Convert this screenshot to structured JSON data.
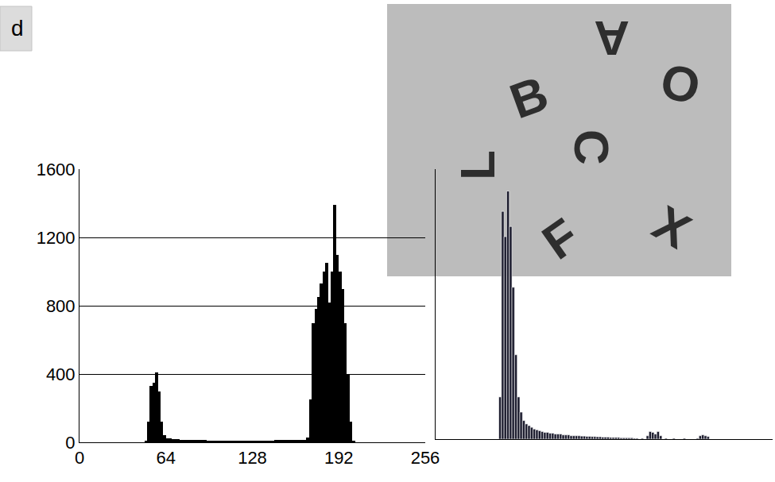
{
  "caption": "d",
  "image": {
    "letters": [
      "B",
      "A",
      "O",
      "C",
      "L",
      "F",
      "X"
    ]
  },
  "chart_data": [
    {
      "type": "histogram",
      "bins": [
        0,
        2,
        4,
        6,
        8,
        10,
        12,
        14,
        16,
        18,
        20,
        22,
        24,
        26,
        28,
        30,
        32,
        34,
        36,
        38,
        40,
        42,
        44,
        46,
        48,
        50,
        52,
        54,
        56,
        58,
        60,
        62,
        64,
        66,
        68,
        70,
        72,
        74,
        76,
        78,
        80,
        82,
        84,
        86,
        88,
        90,
        92,
        94,
        96,
        98,
        100,
        102,
        104,
        106,
        108,
        110,
        112,
        114,
        116,
        118,
        120,
        122,
        124,
        126,
        128,
        130,
        132,
        134,
        136,
        138,
        140,
        142,
        144,
        146,
        148,
        150,
        152,
        154,
        156,
        158,
        160,
        162,
        164,
        166,
        168,
        170,
        172,
        174,
        176,
        178,
        180,
        182,
        184,
        186,
        188,
        190,
        192,
        194,
        196,
        198,
        200,
        202,
        204,
        206,
        208,
        210,
        212,
        214,
        216,
        218,
        220,
        222,
        224,
        226,
        228,
        230,
        232,
        234,
        236,
        238,
        240,
        242,
        244,
        246,
        248,
        250,
        252,
        254,
        256
      ],
      "values": [
        0,
        0,
        0,
        0,
        0,
        0,
        0,
        0,
        0,
        0,
        0,
        0,
        0,
        0,
        0,
        0,
        0,
        0,
        0,
        0,
        0,
        0,
        0,
        0,
        10,
        120,
        330,
        350,
        410,
        300,
        120,
        40,
        25,
        22,
        20,
        18,
        17,
        16,
        15,
        15,
        14,
        14,
        13,
        13,
        12,
        12,
        12,
        11,
        11,
        11,
        10,
        10,
        10,
        10,
        10,
        9,
        9,
        9,
        9,
        9,
        9,
        9,
        9,
        10,
        10,
        10,
        10,
        10,
        11,
        11,
        11,
        11,
        12,
        12,
        12,
        12,
        12,
        13,
        13,
        13,
        14,
        14,
        15,
        16,
        30,
        250,
        700,
        780,
        850,
        930,
        1000,
        1050,
        820,
        1000,
        1390,
        1100,
        1000,
        900,
        700,
        400,
        120,
        10,
        0,
        0,
        0,
        0,
        0,
        0,
        0,
        0,
        0,
        0,
        0,
        0,
        0,
        0,
        0,
        0,
        0,
        0,
        0,
        0,
        0,
        0,
        0,
        0,
        0,
        0
      ],
      "color": "#000000",
      "xlim": [
        0,
        256
      ],
      "xticks": [
        0,
        64,
        128,
        192,
        256
      ],
      "ylim": [
        0,
        1600
      ],
      "yticks": [
        0,
        400,
        800,
        1200,
        1600
      ],
      "grid": true
    },
    {
      "type": "histogram",
      "bins": [
        0,
        2,
        4,
        6,
        8,
        10,
        12,
        14,
        16,
        18,
        20,
        22,
        24,
        26,
        28,
        30,
        32,
        34,
        36,
        38,
        40,
        42,
        44,
        46,
        48,
        50,
        52,
        54,
        56,
        58,
        60,
        62,
        64,
        66,
        68,
        70,
        72,
        74,
        76,
        78,
        80,
        82,
        84,
        86,
        88,
        90,
        92,
        94,
        96,
        98,
        100,
        102,
        104,
        106,
        108,
        110,
        112,
        114,
        116,
        118,
        120,
        122,
        124,
        126,
        128,
        130,
        132,
        134,
        136,
        138,
        140,
        142,
        144,
        146,
        148,
        150,
        152,
        154,
        156,
        158,
        160,
        162,
        164,
        166,
        168,
        170,
        172,
        174,
        176,
        178,
        180,
        182,
        184,
        186,
        188,
        190,
        192,
        194,
        196,
        198,
        200,
        202,
        204,
        206,
        208,
        210,
        212,
        214,
        216,
        218,
        220,
        222,
        224,
        226,
        228,
        230,
        232,
        234,
        236,
        238,
        240,
        242,
        244,
        246,
        248,
        250,
        252,
        254,
        256
      ],
      "values": [
        0,
        0,
        0,
        0,
        0,
        0,
        0,
        0,
        0,
        0,
        0,
        0,
        0,
        0,
        0,
        0,
        0,
        0,
        0,
        0,
        0,
        0,
        0,
        0,
        250,
        1350,
        1200,
        1470,
        1260,
        900,
        500,
        250,
        160,
        110,
        90,
        80,
        70,
        60,
        55,
        50,
        45,
        40,
        40,
        35,
        35,
        30,
        30,
        30,
        25,
        25,
        25,
        20,
        20,
        20,
        20,
        18,
        18,
        16,
        16,
        15,
        15,
        14,
        14,
        12,
        12,
        12,
        10,
        10,
        10,
        10,
        8,
        8,
        8,
        8,
        8,
        5,
        5,
        0,
        5,
        0,
        20,
        45,
        40,
        30,
        45,
        20,
        0,
        5,
        0,
        0,
        5,
        0,
        0,
        0,
        5,
        0,
        0,
        0,
        0,
        5,
        20,
        25,
        20,
        15,
        0,
        0,
        0,
        0,
        0,
        0,
        0,
        0,
        0,
        0,
        0,
        0,
        0,
        0,
        0,
        0,
        0,
        0,
        0,
        0,
        0,
        0,
        0,
        0
      ],
      "color": "#1c1c2e",
      "xlim": [
        0,
        256
      ],
      "ylim": [
        0,
        1600
      ],
      "grid": false,
      "tick_labels": false
    }
  ]
}
